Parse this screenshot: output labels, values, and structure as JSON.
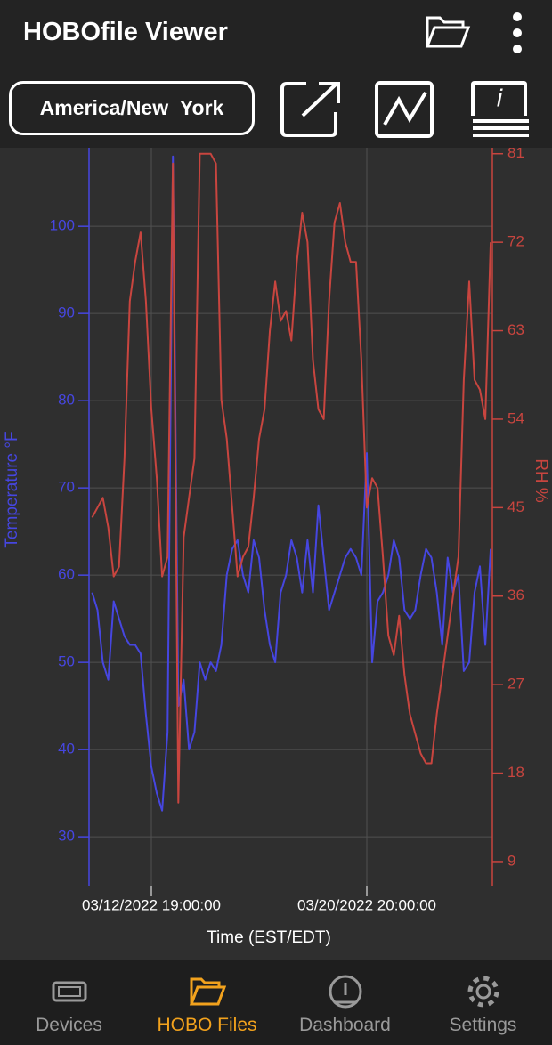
{
  "header": {
    "title": "HOBOfile Viewer",
    "timezone": "America/New_York"
  },
  "nav": [
    "Devices",
    "HOBO Files",
    "Dashboard",
    "Settings"
  ],
  "chart_data": {
    "type": "line",
    "ylabel": "Temperature °F",
    "y2label": "RH %",
    "xlabel": "Time (EST/EDT)",
    "categories": [
      null,
      null,
      null,
      null,
      null,
      null,
      null,
      null,
      null,
      null,
      null,
      "03/12/2022 19:00:00",
      null,
      null,
      null,
      null,
      null,
      null,
      null,
      null,
      null,
      null,
      null,
      null,
      null,
      null,
      null,
      null,
      null,
      null,
      null,
      null,
      null,
      null,
      null,
      null,
      null,
      null,
      null,
      null,
      null,
      null,
      null,
      null,
      null,
      null,
      null,
      null,
      null,
      null,
      null,
      "03/20/2022 20:00:00",
      null,
      null,
      null,
      null,
      null,
      null,
      null,
      null,
      null,
      null,
      null,
      null,
      null,
      null,
      null,
      null,
      null,
      null,
      null,
      null,
      null,
      null,
      null
    ],
    "series": [
      {
        "name": "Temperature",
        "color": "#4646e0",
        "axis": "y",
        "values": [
          58,
          56,
          50,
          48,
          57,
          55,
          53,
          52,
          52,
          51,
          44,
          38,
          35,
          33,
          42,
          108,
          45,
          48,
          40,
          42,
          50,
          48,
          50,
          49,
          52,
          60,
          63,
          64,
          60,
          58,
          64,
          62,
          56,
          52,
          50,
          58,
          60,
          64,
          62,
          58,
          64,
          58,
          68,
          62,
          56,
          58,
          60,
          62,
          63,
          62,
          60,
          74,
          50,
          57,
          58,
          60,
          64,
          62,
          56,
          55,
          56,
          60,
          63,
          62,
          58,
          52,
          62,
          58,
          60,
          49,
          50,
          58,
          61,
          52,
          63
        ]
      },
      {
        "name": "RH",
        "color": "#c8453f",
        "axis": "y2",
        "values": [
          44,
          45,
          46,
          43,
          38,
          39,
          50,
          66,
          70,
          73,
          66,
          55,
          48,
          38,
          40,
          80,
          15,
          42,
          46,
          50,
          81,
          81,
          81,
          80,
          56,
          52,
          45,
          38,
          40,
          41,
          46,
          52,
          55,
          63,
          68,
          64,
          65,
          62,
          70,
          75,
          72,
          60,
          55,
          54,
          66,
          74,
          76,
          72,
          70,
          70,
          60,
          45,
          48,
          47,
          40,
          32,
          30,
          34,
          28,
          24,
          22,
          20,
          19,
          19,
          24,
          28,
          32,
          36,
          40,
          58,
          68,
          58,
          57,
          54,
          72
        ]
      }
    ],
    "ylim": [
      24.4,
      109.1
    ],
    "yticks": [
      30,
      40,
      50,
      60,
      70,
      80,
      90,
      100
    ],
    "y2lim": [
      6.55,
      81.7
    ],
    "y2ticks": [
      9,
      18,
      27,
      36,
      45,
      54,
      63,
      72,
      81
    ],
    "grid": true
  }
}
